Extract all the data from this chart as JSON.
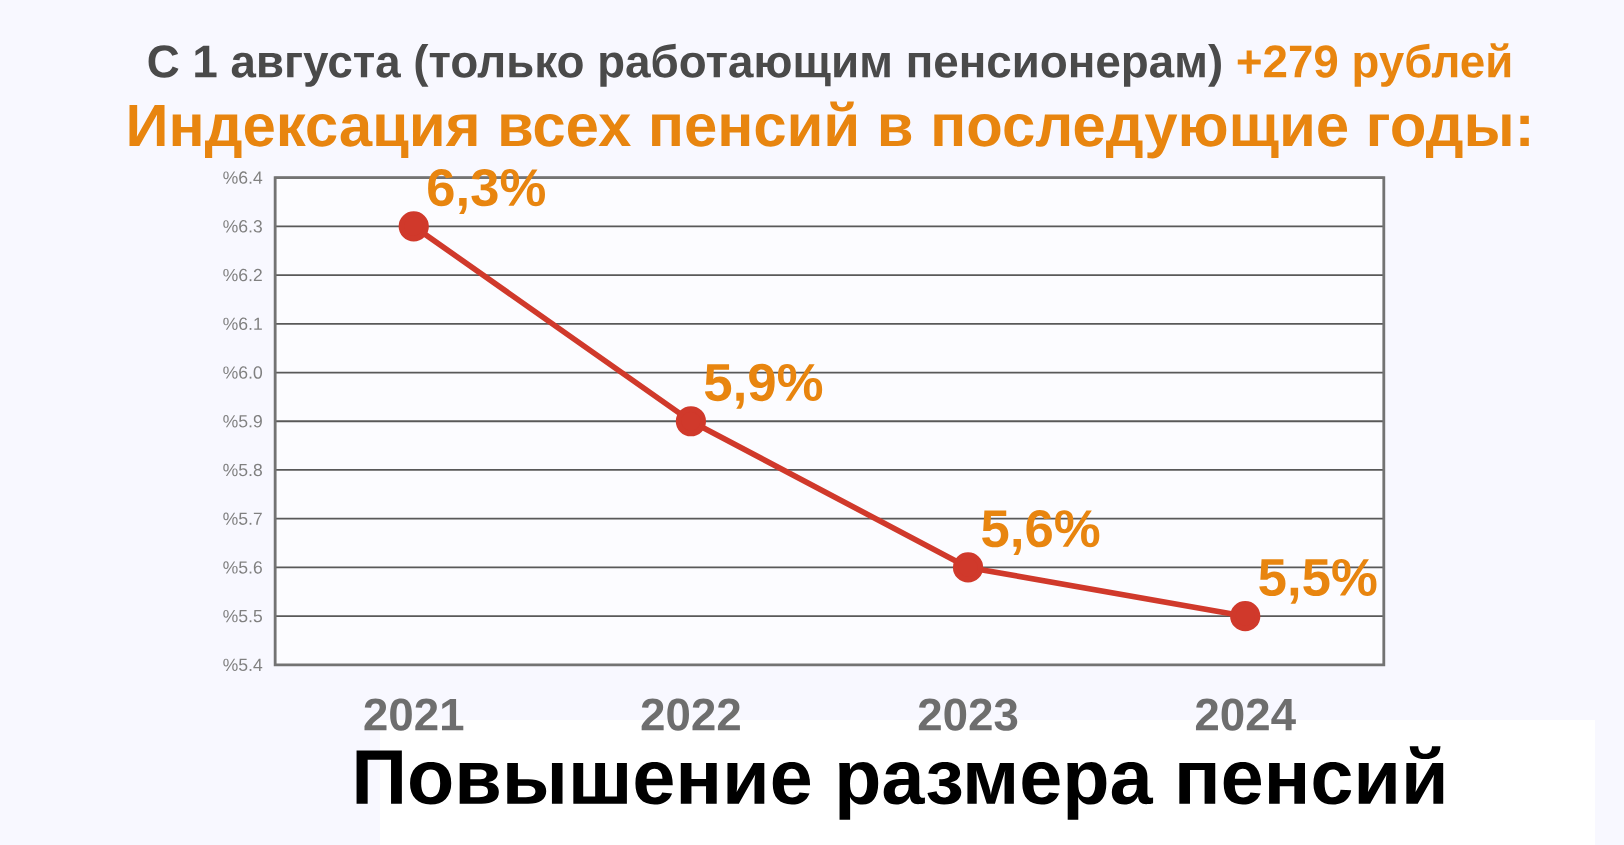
{
  "chart_data": {
    "type": "line",
    "title": "Индексация всех пенсий в последующие годы:",
    "subtitle": "С 1 августа (только работающим пенсионерам)",
    "annotations": [
      "+279 рублей",
      "Повышение размера пенсий"
    ],
    "categories": [
      "2021",
      "2022",
      "2023",
      "2024"
    ],
    "series": [
      {
        "color": "#d0392b",
        "values": [
          6.3,
          5.9,
          5.6,
          5.5
        ],
        "value_labels": [
          "6,3%",
          "5,9%",
          "5,6%",
          "5,5%"
        ]
      }
    ],
    "ylim": [
      5.4,
      6.4
    ],
    "yticks": [
      {
        "value": 5.4,
        "label": "%5.4"
      },
      {
        "value": 5.5,
        "label": "%5.5"
      },
      {
        "value": 5.6,
        "label": "%5.6"
      },
      {
        "value": 5.7,
        "label": "%5.7"
      },
      {
        "value": 5.8,
        "label": "%5.8"
      },
      {
        "value": 5.9,
        "label": "%5.9"
      },
      {
        "value": 6.0,
        "label": "%6.0"
      },
      {
        "value": 6.1,
        "label": "%6.1"
      },
      {
        "value": 6.2,
        "label": "%6.2"
      },
      {
        "value": 6.3,
        "label": "%6.3"
      },
      {
        "value": 6.4,
        "label": "%6.4"
      }
    ],
    "grid": "y",
    "marker": "circle",
    "line_style": "solid"
  }
}
